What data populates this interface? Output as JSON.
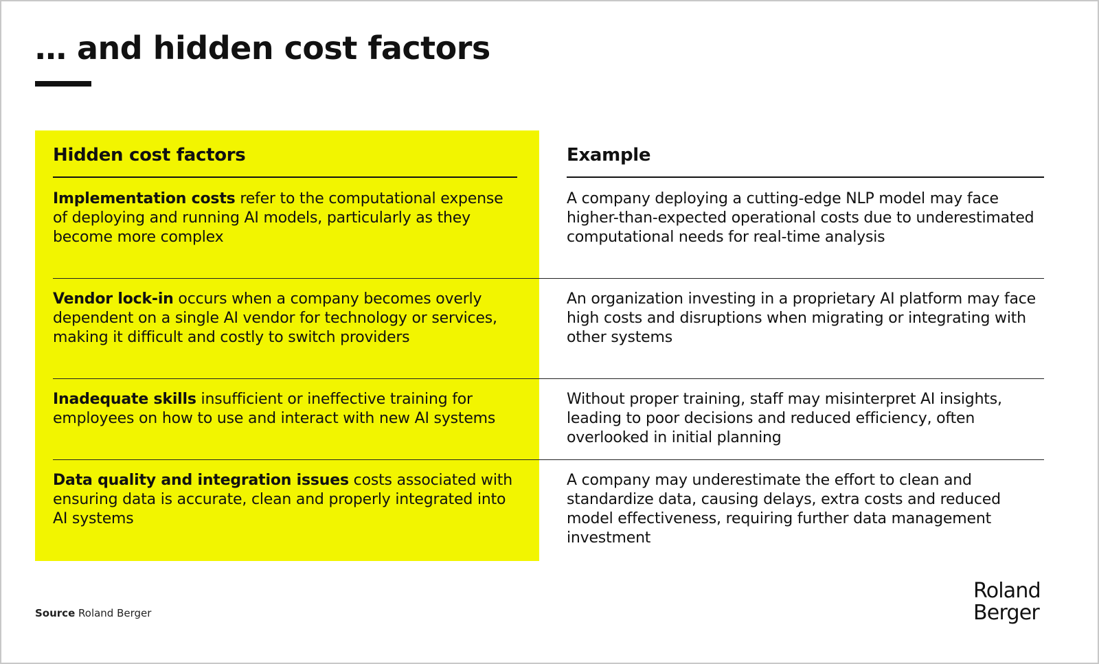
{
  "page": {
    "title": "… and hidden cost factors",
    "accent_color": "#F2F500"
  },
  "table": {
    "left_header": "Hidden cost factors",
    "right_header": "Example",
    "rows": [
      {
        "factor_bold": "Implementation costs",
        "factor_text": " refer to the computational expense of deploying and running AI models, particularly as they become more complex",
        "example": "A company deploying a cutting-edge NLP model may face higher-than-expected operational costs due to underestimated computational needs for real-time analysis"
      },
      {
        "factor_bold": "Vendor lock-in",
        "factor_text": " occurs when a company becomes overly dependent on a single AI vendor for technology or services, making it difficult and costly to switch providers",
        "example": "An organization investing in a proprietary AI platform may face high costs and disruptions when migrating or integrating with other systems"
      },
      {
        "factor_bold": "Inadequate skills",
        "factor_text": " insufficient or ineffective training for employees on how to use and interact with new AI systems",
        "example": "Without proper training, staff may misinterpret AI insights, leading to poor decisions and reduced efficiency, often overlooked in initial planning"
      },
      {
        "factor_bold": "Data quality and integration issues",
        "factor_text": " costs associated with ensuring data is accurate, clean and properly integrated into AI systems",
        "example": "A company may underestimate the effort to clean and standardize data, causing delays, extra costs and reduced model effectiveness, requiring further data management investment"
      }
    ]
  },
  "footer": {
    "source_label": "Source",
    "source_text": " Roland Berger",
    "logo_line1": "Roland",
    "logo_line2": "Berger"
  }
}
